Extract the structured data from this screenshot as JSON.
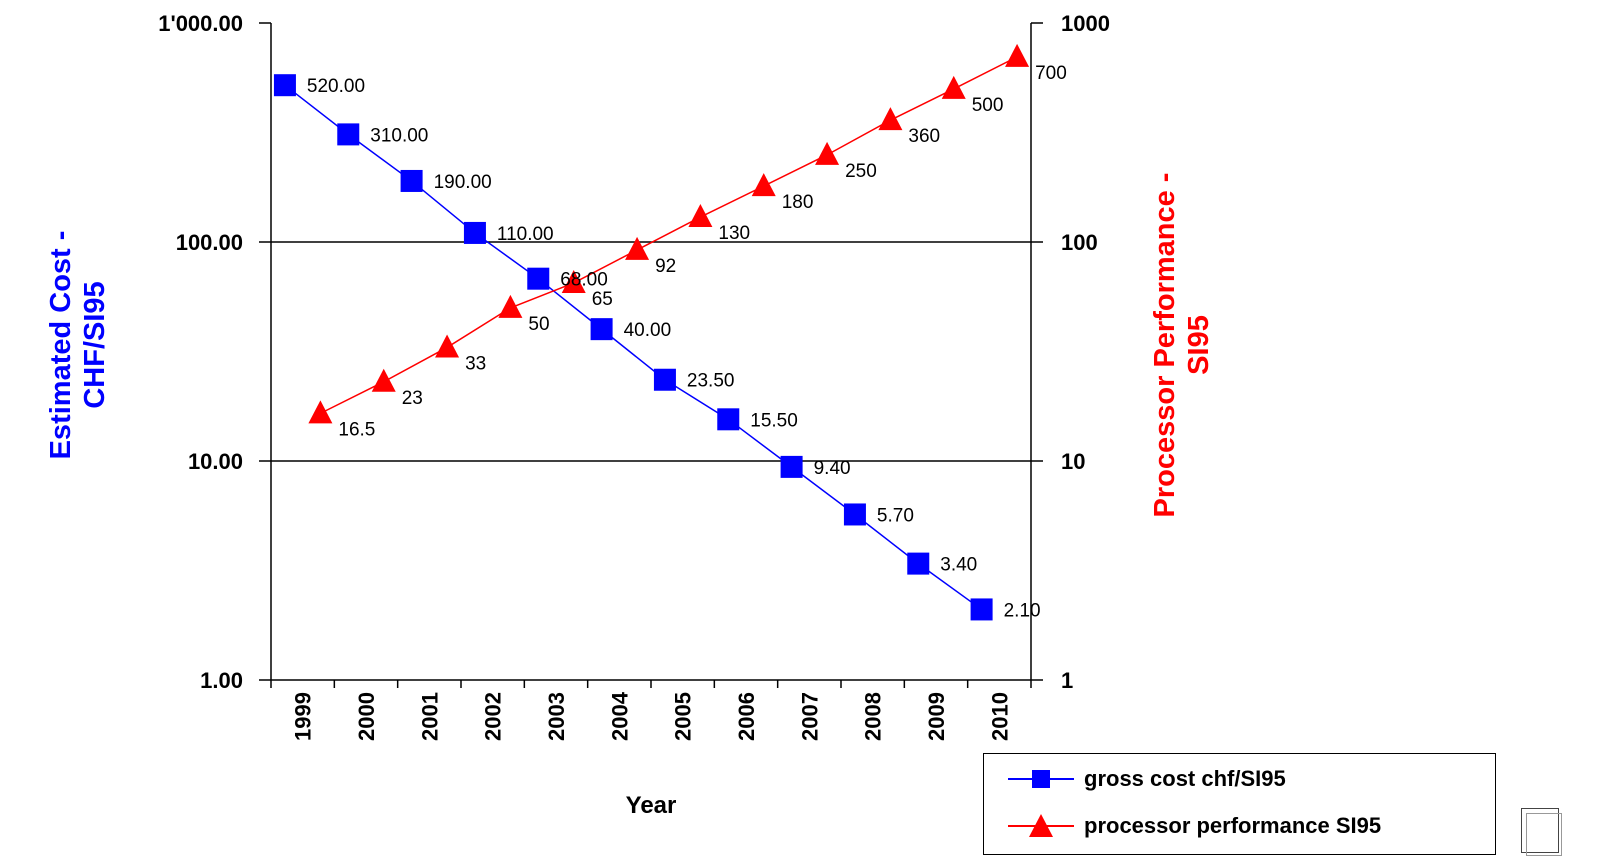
{
  "chart_data": {
    "type": "line",
    "xlabel": "Year",
    "categories": [
      "1999",
      "2000",
      "2001",
      "2002",
      "2003",
      "2004",
      "2005",
      "2006",
      "2007",
      "2008",
      "2009",
      "2010"
    ],
    "y_left": {
      "label_lines": [
        "Estimated Cost -",
        "CHF/SI95"
      ],
      "scale": "log",
      "range": [
        1,
        1000
      ],
      "tick_values": [
        1,
        10,
        100,
        1000
      ],
      "tick_labels": [
        "1.00",
        "10.00",
        "100.00",
        "1'000.00"
      ],
      "color": "#0000ff"
    },
    "y_right": {
      "label_lines": [
        "Processor Performance -",
        "SI95"
      ],
      "scale": "log",
      "range": [
        1,
        1000
      ],
      "tick_values": [
        1,
        10,
        100,
        1000
      ],
      "tick_labels": [
        "1",
        "10",
        "100",
        "1000"
      ],
      "color": "#ff0000"
    },
    "grid": "horizontal-major",
    "legend_position": "bottom-right",
    "series": [
      {
        "name": "gross cost chf/SI95",
        "axis": "left",
        "marker": "square",
        "color": "#0000ff",
        "values": [
          520,
          310,
          190,
          110,
          68,
          40,
          23.5,
          15.5,
          9.4,
          5.7,
          3.4,
          2.1
        ],
        "labels": [
          "520.00",
          "310.00",
          "190.00",
          "110.00",
          "68.00",
          "40.00",
          "23.50",
          "15.50",
          "9.40",
          "5.70",
          "3.40",
          "2.10"
        ]
      },
      {
        "name": "processor performance SI95",
        "axis": "right",
        "marker": "triangle",
        "color": "#ff0000",
        "values": [
          16.5,
          23,
          33,
          50,
          65,
          92,
          130,
          180,
          250,
          360,
          500,
          700
        ],
        "labels": [
          "16.5",
          "23",
          "33",
          "50",
          "65",
          "92",
          "130",
          "180",
          "250",
          "360",
          "500",
          "700"
        ]
      }
    ]
  }
}
